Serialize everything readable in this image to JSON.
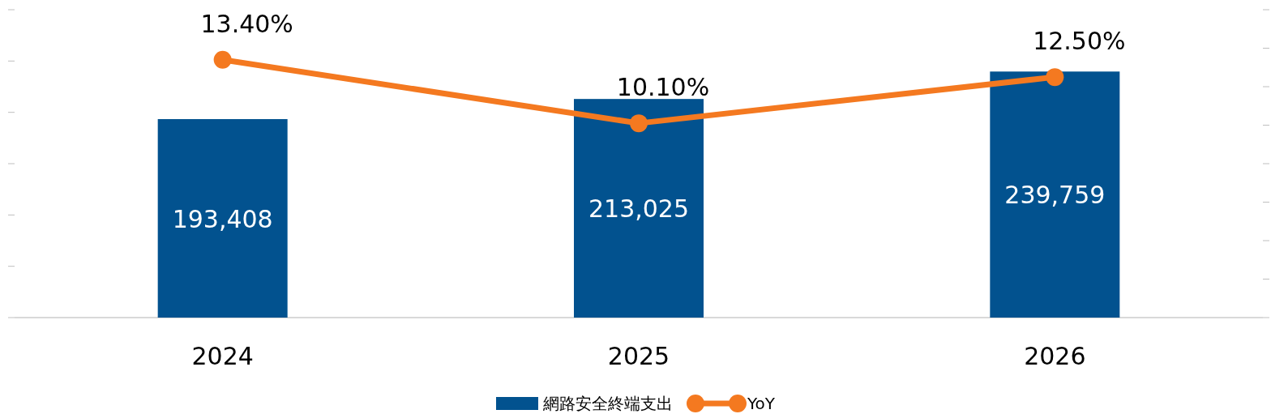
{
  "chart_data": {
    "type": "bar",
    "categories": [
      "2024",
      "2025",
      "2026"
    ],
    "series": [
      {
        "name": "網路安全終端支出",
        "color": "#02528f",
        "values": [
          193408,
          213025,
          239759
        ],
        "value_labels": [
          "193,408",
          "213,025",
          "239,759"
        ]
      },
      {
        "name": "YoY",
        "type": "line",
        "axis": "y2",
        "color": "#f47920",
        "values": [
          13.4,
          10.1,
          12.5
        ],
        "value_labels": [
          "13.40%",
          "10.10%",
          "12.50%"
        ]
      }
    ],
    "yticks": [
      {
        "value": 0,
        "label": null
      },
      {
        "value": 50000,
        "label": null
      },
      {
        "value": 100000,
        "label": null
      },
      {
        "value": 150000,
        "label": null
      },
      {
        "value": 200000,
        "label": null
      },
      {
        "value": 250000,
        "label": null
      },
      {
        "value": 300000,
        "label": null
      }
    ],
    "y2ticks": [
      {
        "value": 0,
        "label": null
      },
      {
        "value": 2,
        "label": null
      },
      {
        "value": 4,
        "label": null
      },
      {
        "value": 6,
        "label": null
      },
      {
        "value": 8,
        "label": null
      },
      {
        "value": 10,
        "label": null
      },
      {
        "value": 12,
        "label": null
      },
      {
        "value": 14,
        "label": null
      },
      {
        "value": 16,
        "label": null
      }
    ],
    "tick_labels": "x",
    "legend": "bottom",
    "grid": false,
    "marker": "circle"
  }
}
